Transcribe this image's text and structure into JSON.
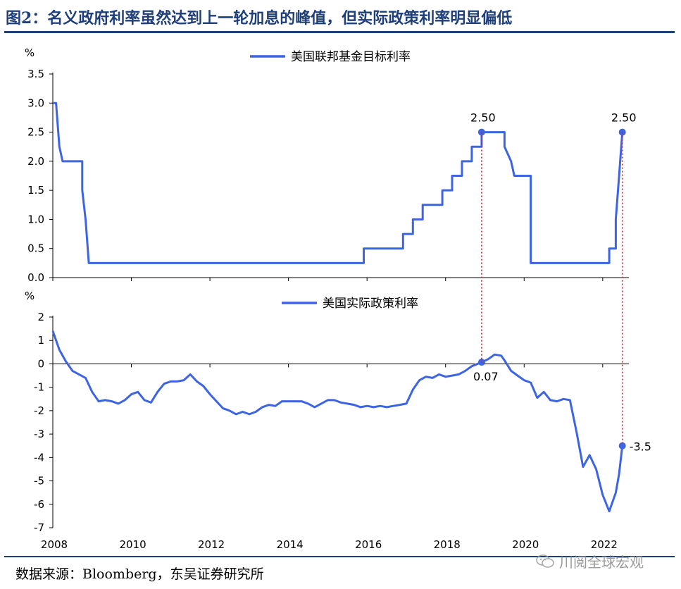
{
  "figure": {
    "title": "图2：名义政府利率虽然达到上一轮加息的峰值，但实际政策利率明显偏低",
    "source": "数据来源：Bloomberg，东吴证券研究所",
    "watermark": "川阅全球宏观",
    "watermark_icon": "wechat-icon"
  },
  "chart_data": [
    {
      "type": "line",
      "ylabel": "%",
      "ylim": [
        0,
        3.5
      ],
      "yticks": [
        0.0,
        0.5,
        1.0,
        1.5,
        2.0,
        2.5,
        3.0,
        3.5
      ],
      "ytick_labels": [
        "0.0",
        "0.5",
        "1.0",
        "1.5",
        "2.0",
        "2.5",
        "3.0",
        "3.5"
      ],
      "xlim": [
        "2008-01",
        "2022-09"
      ],
      "xticks": [
        "2008",
        "2010",
        "2012",
        "2014",
        "2016",
        "2018",
        "2020",
        "2022"
      ],
      "grid": false,
      "legend_position": "top-center",
      "series": [
        {
          "name": "美国联邦基金目标利率",
          "color": "#3d64e3",
          "points": [
            [
              "2008-01",
              3.0
            ],
            [
              "2008-02",
              3.0
            ],
            [
              "2008-03",
              2.25
            ],
            [
              "2008-04",
              2.0
            ],
            [
              "2008-10",
              2.0
            ],
            [
              "2008-10",
              1.5
            ],
            [
              "2008-11",
              1.0
            ],
            [
              "2008-12",
              0.25
            ],
            [
              "2015-12",
              0.25
            ],
            [
              "2015-12",
              0.5
            ],
            [
              "2016-12",
              0.5
            ],
            [
              "2016-12",
              0.75
            ],
            [
              "2017-03",
              0.75
            ],
            [
              "2017-03",
              1.0
            ],
            [
              "2017-06",
              1.0
            ],
            [
              "2017-06",
              1.25
            ],
            [
              "2017-12",
              1.25
            ],
            [
              "2017-12",
              1.5
            ],
            [
              "2018-03",
              1.5
            ],
            [
              "2018-03",
              1.75
            ],
            [
              "2018-06",
              1.75
            ],
            [
              "2018-06",
              2.0
            ],
            [
              "2018-09",
              2.0
            ],
            [
              "2018-09",
              2.25
            ],
            [
              "2018-12",
              2.25
            ],
            [
              "2018-12",
              2.5
            ],
            [
              "2019-07",
              2.5
            ],
            [
              "2019-07",
              2.25
            ],
            [
              "2019-09",
              2.0
            ],
            [
              "2019-10",
              1.75
            ],
            [
              "2020-03",
              1.75
            ],
            [
              "2020-03",
              0.25
            ],
            [
              "2022-03",
              0.25
            ],
            [
              "2022-03",
              0.5
            ],
            [
              "2022-05",
              0.5
            ],
            [
              "2022-05",
              1.0
            ],
            [
              "2022-06",
              1.75
            ],
            [
              "2022-07",
              2.5
            ]
          ]
        }
      ],
      "annotations": [
        {
          "label": "2.50",
          "x": "2018-12",
          "y": 2.5
        },
        {
          "label": "2.50",
          "x": "2022-07",
          "y": 2.5
        }
      ]
    },
    {
      "type": "line",
      "ylabel": "%",
      "ylim": [
        -7,
        2
      ],
      "yticks": [
        -7,
        -6,
        -5,
        -4,
        -3,
        -2,
        -1,
        0,
        1,
        2
      ],
      "ytick_labels": [
        "-7",
        "-6",
        "-5",
        "-4",
        "-3",
        "-2",
        "-1",
        "0",
        "1",
        "2"
      ],
      "xlim": [
        "2008-01",
        "2022-09"
      ],
      "xticks": [
        "2008",
        "2010",
        "2012",
        "2014",
        "2016",
        "2018",
        "2020",
        "2022"
      ],
      "grid": false,
      "legend_position": "top-center",
      "series": [
        {
          "name": "美国实际政策利率",
          "color": "#3d64e3",
          "points": [
            [
              "2008-01",
              1.4
            ],
            [
              "2008-03",
              0.6
            ],
            [
              "2008-05",
              0.1
            ],
            [
              "2008-07",
              -0.3
            ],
            [
              "2008-09",
              -0.45
            ],
            [
              "2008-11",
              -0.6
            ],
            [
              "2009-01",
              -1.2
            ],
            [
              "2009-03",
              -1.6
            ],
            [
              "2009-05",
              -1.55
            ],
            [
              "2009-07",
              -1.6
            ],
            [
              "2009-09",
              -1.7
            ],
            [
              "2009-11",
              -1.55
            ],
            [
              "2010-01",
              -1.3
            ],
            [
              "2010-03",
              -1.2
            ],
            [
              "2010-05",
              -1.55
            ],
            [
              "2010-07",
              -1.65
            ],
            [
              "2010-09",
              -1.2
            ],
            [
              "2010-11",
              -0.85
            ],
            [
              "2011-01",
              -0.75
            ],
            [
              "2011-03",
              -0.75
            ],
            [
              "2011-05",
              -0.7
            ],
            [
              "2011-07",
              -0.45
            ],
            [
              "2011-09",
              -0.75
            ],
            [
              "2011-11",
              -0.95
            ],
            [
              "2012-01",
              -1.3
            ],
            [
              "2012-03",
              -1.6
            ],
            [
              "2012-05",
              -1.9
            ],
            [
              "2012-07",
              -2.0
            ],
            [
              "2012-09",
              -2.15
            ],
            [
              "2012-11",
              -2.05
            ],
            [
              "2013-01",
              -2.15
            ],
            [
              "2013-03",
              -2.05
            ],
            [
              "2013-05",
              -1.85
            ],
            [
              "2013-07",
              -1.75
            ],
            [
              "2013-09",
              -1.8
            ],
            [
              "2013-11",
              -1.6
            ],
            [
              "2014-01",
              -1.6
            ],
            [
              "2014-03",
              -1.6
            ],
            [
              "2014-05",
              -1.6
            ],
            [
              "2014-07",
              -1.7
            ],
            [
              "2014-09",
              -1.85
            ],
            [
              "2014-11",
              -1.7
            ],
            [
              "2015-01",
              -1.55
            ],
            [
              "2015-03",
              -1.55
            ],
            [
              "2015-05",
              -1.65
            ],
            [
              "2015-07",
              -1.7
            ],
            [
              "2015-09",
              -1.75
            ],
            [
              "2015-11",
              -1.85
            ],
            [
              "2016-01",
              -1.8
            ],
            [
              "2016-03",
              -1.85
            ],
            [
              "2016-05",
              -1.8
            ],
            [
              "2016-07",
              -1.85
            ],
            [
              "2016-09",
              -1.8
            ],
            [
              "2016-11",
              -1.75
            ],
            [
              "2017-01",
              -1.7
            ],
            [
              "2017-03",
              -1.1
            ],
            [
              "2017-05",
              -0.7
            ],
            [
              "2017-07",
              -0.55
            ],
            [
              "2017-09",
              -0.6
            ],
            [
              "2017-11",
              -0.45
            ],
            [
              "2018-01",
              -0.55
            ],
            [
              "2018-03",
              -0.5
            ],
            [
              "2018-05",
              -0.45
            ],
            [
              "2018-07",
              -0.3
            ],
            [
              "2018-09",
              -0.1
            ],
            [
              "2018-12",
              0.07
            ],
            [
              "2019-02",
              0.2
            ],
            [
              "2019-04",
              0.4
            ],
            [
              "2019-06",
              0.35
            ],
            [
              "2019-07",
              0.15
            ],
            [
              "2019-09",
              -0.3
            ],
            [
              "2019-11",
              -0.5
            ],
            [
              "2020-01",
              -0.7
            ],
            [
              "2020-03",
              -0.8
            ],
            [
              "2020-05",
              -1.45
            ],
            [
              "2020-07",
              -1.2
            ],
            [
              "2020-09",
              -1.55
            ],
            [
              "2020-11",
              -1.6
            ],
            [
              "2021-01",
              -1.5
            ],
            [
              "2021-03",
              -1.55
            ],
            [
              "2021-05",
              -2.9
            ],
            [
              "2021-07",
              -4.4
            ],
            [
              "2021-09",
              -3.9
            ],
            [
              "2021-11",
              -4.5
            ],
            [
              "2022-01",
              -5.6
            ],
            [
              "2022-03",
              -6.3
            ],
            [
              "2022-05",
              -5.5
            ],
            [
              "2022-06",
              -4.7
            ],
            [
              "2022-07",
              -3.5
            ]
          ]
        }
      ],
      "annotations": [
        {
          "label": "0.07",
          "x": "2018-12",
          "y": 0.07
        },
        {
          "label": "-3.5",
          "x": "2022-07",
          "y": -3.5
        }
      ]
    }
  ]
}
